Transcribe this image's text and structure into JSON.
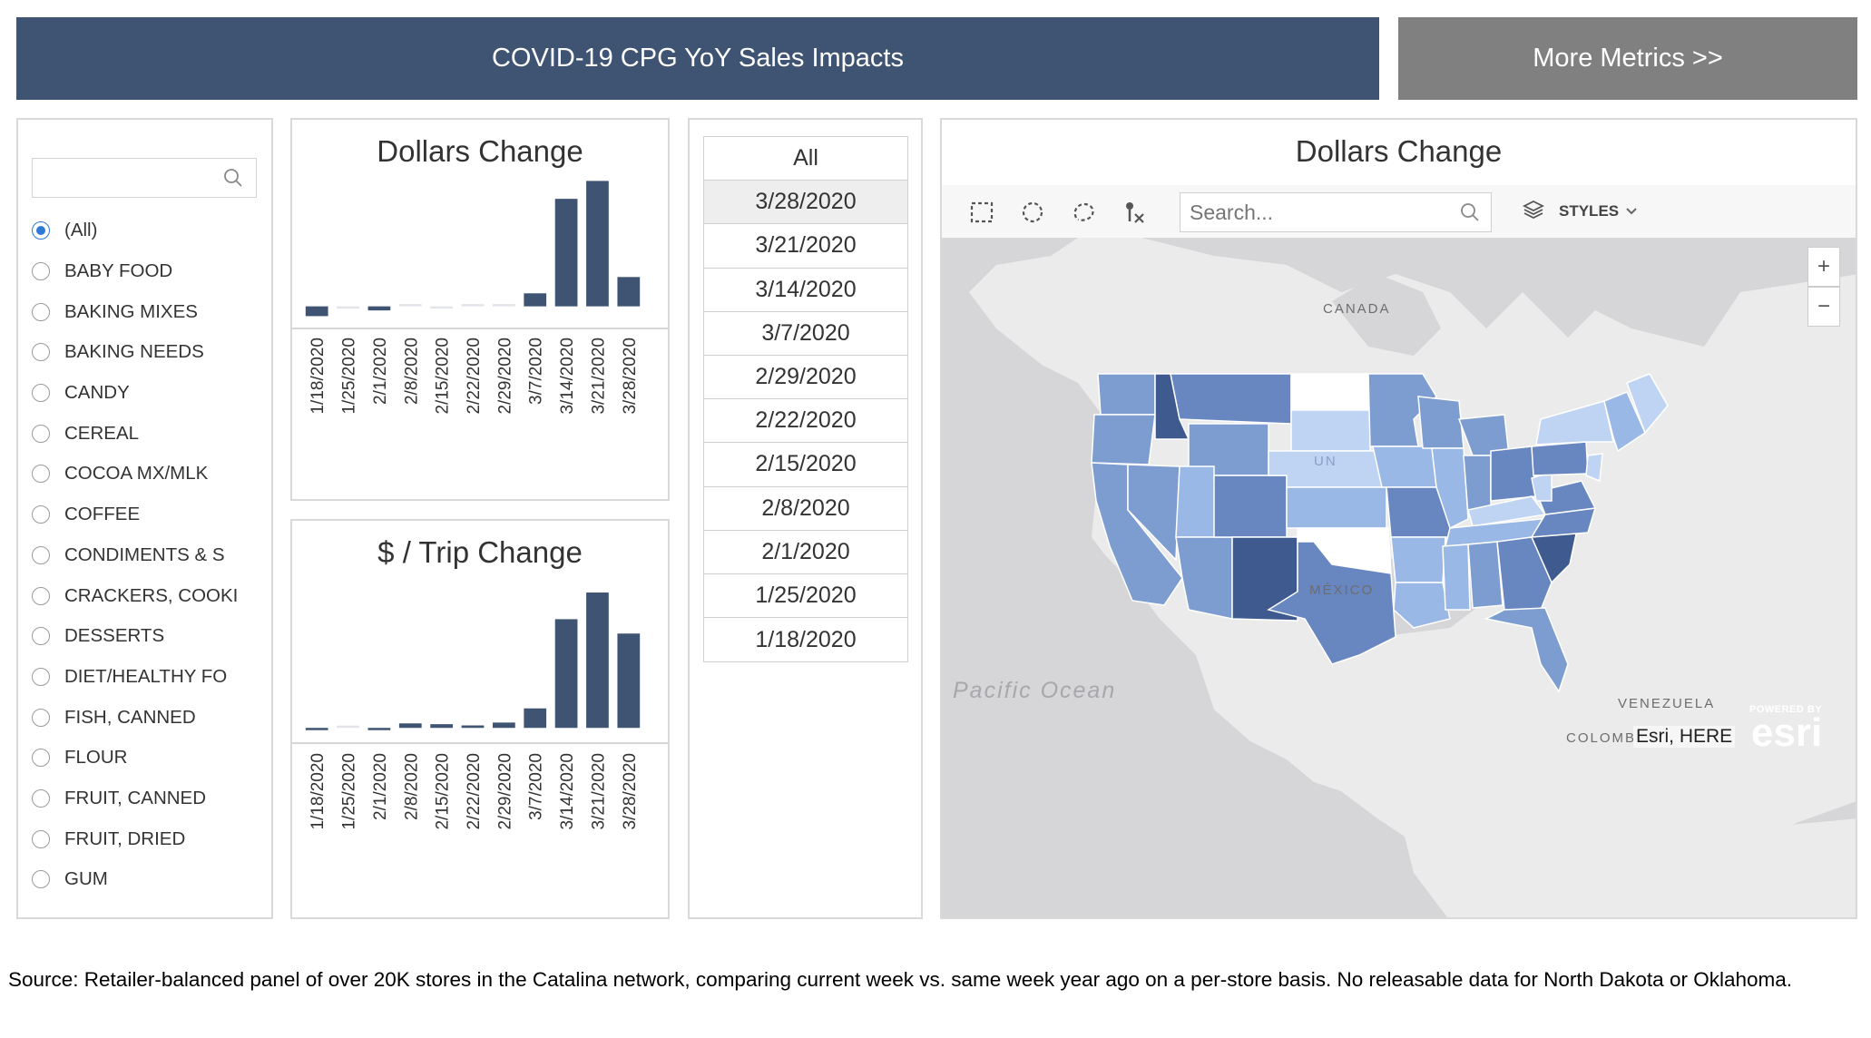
{
  "header": {
    "title": "COVID-19 CPG YoY Sales Impacts",
    "more_metrics": "More Metrics >>"
  },
  "filter": {
    "search_placeholder": "",
    "selected": "(All)",
    "categories": [
      "(All)",
      "BABY FOOD",
      "BAKING MIXES",
      "BAKING NEEDS",
      "CANDY",
      "CEREAL",
      "COCOA MX/MLK",
      "COFFEE",
      "CONDIMENTS & S",
      "CRACKERS, COOKI",
      "DESSERTS",
      "DIET/HEALTHY FO",
      "FISH, CANNED",
      "FLOUR",
      "FRUIT, CANNED",
      "FRUIT, DRIED",
      "GUM"
    ]
  },
  "chart_data": [
    {
      "type": "bar",
      "title": "Dollars Change",
      "categories": [
        "1/18/2020",
        "1/25/2020",
        "2/1/2020",
        "2/8/2020",
        "2/15/2020",
        "2/22/2020",
        "2/29/2020",
        "3/7/2020",
        "3/14/2020",
        "3/21/2020",
        "3/28/2020"
      ],
      "values": [
        -6,
        -0.4,
        -2.5,
        0.6,
        -0.3,
        0.5,
        0.3,
        8,
        66,
        77,
        18
      ],
      "ylim": [
        -8,
        80
      ],
      "color": "#3f5473"
    },
    {
      "type": "bar",
      "title": "$ / Trip Change",
      "categories": [
        "1/18/2020",
        "1/25/2020",
        "2/1/2020",
        "2/8/2020",
        "2/15/2020",
        "2/22/2020",
        "2/29/2020",
        "3/7/2020",
        "3/14/2020",
        "3/21/2020",
        "3/28/2020"
      ],
      "values": [
        -1,
        0.3,
        -1,
        2.2,
        1.8,
        1.2,
        2.6,
        9.5,
        53,
        66,
        46
      ],
      "ylim": [
        -3,
        70
      ],
      "color": "#3f5473"
    }
  ],
  "dates": {
    "all_label": "All",
    "selected": "3/28/2020",
    "items": [
      "3/28/2020",
      "3/21/2020",
      "3/14/2020",
      "3/7/2020",
      "2/29/2020",
      "2/22/2020",
      "2/15/2020",
      "2/8/2020",
      "2/1/2020",
      "1/25/2020",
      "1/18/2020"
    ]
  },
  "map": {
    "title": "Dollars Change",
    "search_placeholder": "Search...",
    "styles_label": "STYLES",
    "zoom_in": "+",
    "zoom_out": "−",
    "labels": {
      "canada": "CANADA",
      "mexico": "MÉXICO",
      "venezuela": "VENEZUELA",
      "colombia": "COLOMB",
      "pacific": "Pacific Ocean",
      "us_partial": "UN"
    },
    "attribution": "Esri, HERE",
    "logo_powered": "POWERED BY",
    "logo_text": "esri",
    "colors": {
      "light": "#bfd3f2",
      "mid_light": "#9ab8e6",
      "mid": "#7d9dd0",
      "mid_dark": "#6886c0",
      "dark": "#3f5a8e",
      "land": "#ebebeb",
      "water": "#d6d6d9",
      "no_data": "#ffffff"
    }
  },
  "footer": {
    "source": "Source: Retailer-balanced panel of over 20K stores in the Catalina network, comparing current week vs. same week year ago on a per-store basis. No releasable data for North Dakota or Oklahoma."
  }
}
